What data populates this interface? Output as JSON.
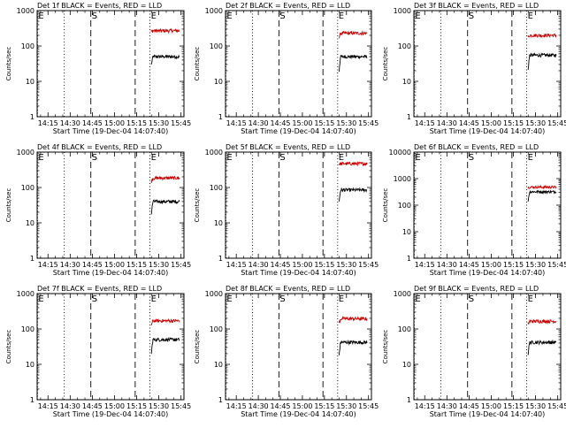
{
  "colors": {
    "background": "#ffffff",
    "axes": "#000000",
    "events": "#000000",
    "lld": "#cc0000"
  },
  "chart_data": [
    {
      "type": "line",
      "title": "Det 1f BLACK = Events, RED = LLD",
      "xlabel": "Start Time (19-Dec-04 14:07:40)",
      "ylabel": "Counts/sec",
      "yscale": "log",
      "ylim": [
        1,
        1000
      ],
      "yticks": [
        1,
        10,
        100,
        1000
      ],
      "ytick_labels": [
        "1",
        "10",
        "100",
        "1000"
      ],
      "xticks": [
        "14:15",
        "14:30",
        "14:45",
        "15:00",
        "15:15",
        "15:30",
        "15:45"
      ],
      "markers": [
        {
          "label": "E",
          "time": "14:07",
          "style": "dotted"
        },
        {
          "label": "",
          "time": "14:26",
          "style": "dotted"
        },
        {
          "label": "S",
          "time": "14:44",
          "style": "dashed"
        },
        {
          "label": "",
          "time": "15:14",
          "style": "dashed"
        },
        {
          "label": "E",
          "time": "15:24",
          "style": "dotted"
        }
      ],
      "series": [
        {
          "name": "Events",
          "color": "#000000",
          "t_start": "15:25",
          "t_end": "15:44",
          "level": 50,
          "start_level": 30
        },
        {
          "name": "LLD",
          "color": "#cc0000",
          "t_start": "15:25",
          "t_end": "15:44",
          "level": 270,
          "start_level": 255
        }
      ]
    },
    {
      "type": "line",
      "title": "Det 2f BLACK = Events, RED = LLD",
      "xlabel": "Start Time (19-Dec-04 14:07:40)",
      "ylabel": "Counts/sec",
      "yscale": "log",
      "ylim": [
        1,
        1000
      ],
      "yticks": [
        1,
        10,
        100,
        1000
      ],
      "ytick_labels": [
        "1",
        "10",
        "100",
        "1000"
      ],
      "xticks": [
        "14:15",
        "14:30",
        "14:45",
        "15:00",
        "15:15",
        "15:30",
        "15:45"
      ],
      "markers": [
        {
          "label": "E",
          "time": "14:07",
          "style": "dotted"
        },
        {
          "label": "",
          "time": "14:26",
          "style": "dotted"
        },
        {
          "label": "S",
          "time": "14:44",
          "style": "dashed"
        },
        {
          "label": "",
          "time": "15:14",
          "style": "dashed"
        },
        {
          "label": "E",
          "time": "15:24",
          "style": "dotted"
        }
      ],
      "series": [
        {
          "name": "Events",
          "color": "#000000",
          "t_start": "15:25",
          "t_end": "15:44",
          "level": 50,
          "start_level": 20
        },
        {
          "name": "LLD",
          "color": "#cc0000",
          "t_start": "15:25",
          "t_end": "15:44",
          "level": 230,
          "start_level": 170
        }
      ]
    },
    {
      "type": "line",
      "title": "Det 3f BLACK = Events, RED = LLD",
      "xlabel": "Start Time (19-Dec-04 14:07:40)",
      "ylabel": "Counts/sec",
      "yscale": "log",
      "ylim": [
        1,
        1000
      ],
      "yticks": [
        1,
        10,
        100,
        1000
      ],
      "ytick_labels": [
        "1",
        "10",
        "100",
        "1000"
      ],
      "xticks": [
        "14:15",
        "14:30",
        "14:45",
        "15:00",
        "15:15",
        "15:30",
        "15:45"
      ],
      "markers": [
        {
          "label": "E",
          "time": "14:07",
          "style": "dotted"
        },
        {
          "label": "",
          "time": "14:26",
          "style": "dotted"
        },
        {
          "label": "S",
          "time": "14:44",
          "style": "dashed"
        },
        {
          "label": "",
          "time": "15:14",
          "style": "dashed"
        },
        {
          "label": "E",
          "time": "15:24",
          "style": "dotted"
        }
      ],
      "series": [
        {
          "name": "Events",
          "color": "#000000",
          "t_start": "15:25",
          "t_end": "15:44",
          "level": 55,
          "start_level": 22
        },
        {
          "name": "LLD",
          "color": "#cc0000",
          "t_start": "15:25",
          "t_end": "15:44",
          "level": 200,
          "start_level": 180
        }
      ]
    },
    {
      "type": "line",
      "title": "Det 4f BLACK = Events, RED = LLD",
      "xlabel": "Start Time (19-Dec-04 14:07:40)",
      "ylabel": "Counts/sec",
      "yscale": "log",
      "ylim": [
        1,
        1000
      ],
      "yticks": [
        1,
        10,
        100,
        1000
      ],
      "ytick_labels": [
        "1",
        "10",
        "100",
        "1000"
      ],
      "xticks": [
        "14:15",
        "14:30",
        "14:45",
        "15:00",
        "15:15",
        "15:30",
        "15:45"
      ],
      "markers": [
        {
          "label": "E",
          "time": "14:07",
          "style": "dotted"
        },
        {
          "label": "",
          "time": "14:26",
          "style": "dotted"
        },
        {
          "label": "S",
          "time": "14:44",
          "style": "dashed"
        },
        {
          "label": "",
          "time": "15:14",
          "style": "dashed"
        },
        {
          "label": "E",
          "time": "15:24",
          "style": "dotted"
        }
      ],
      "series": [
        {
          "name": "Events",
          "color": "#000000",
          "t_start": "15:25",
          "t_end": "15:44",
          "level": 40,
          "start_level": 18
        },
        {
          "name": "LLD",
          "color": "#cc0000",
          "t_start": "15:25",
          "t_end": "15:44",
          "level": 185,
          "start_level": 150
        }
      ]
    },
    {
      "type": "line",
      "title": "Det 5f BLACK = Events, RED = LLD",
      "xlabel": "Start Time (19-Dec-04 14:07:40)",
      "ylabel": "Counts/sec",
      "yscale": "log",
      "ylim": [
        1,
        1000
      ],
      "yticks": [
        1,
        10,
        100,
        1000
      ],
      "ytick_labels": [
        "1",
        "10",
        "100",
        "1000"
      ],
      "xticks": [
        "14:15",
        "14:30",
        "14:45",
        "15:00",
        "15:15",
        "15:30",
        "15:45"
      ],
      "markers": [
        {
          "label": "E",
          "time": "14:07",
          "style": "dotted"
        },
        {
          "label": "",
          "time": "14:26",
          "style": "dotted"
        },
        {
          "label": "S",
          "time": "14:44",
          "style": "dashed"
        },
        {
          "label": "",
          "time": "15:14",
          "style": "dashed"
        },
        {
          "label": "E",
          "time": "15:24",
          "style": "dotted"
        }
      ],
      "series": [
        {
          "name": "Events",
          "color": "#000000",
          "t_start": "15:25",
          "t_end": "15:44",
          "level": 85,
          "start_level": 40
        },
        {
          "name": "LLD",
          "color": "#cc0000",
          "t_start": "15:25",
          "t_end": "15:44",
          "level": 470,
          "start_level": 470
        }
      ]
    },
    {
      "type": "line",
      "title": "Det 6f BLACK = Events, RED = LLD",
      "xlabel": "Start Time (19-Dec-04 14:07:40)",
      "ylabel": "Counts/sec",
      "yscale": "log",
      "ylim": [
        1,
        10000
      ],
      "yticks": [
        1,
        10,
        100,
        1000,
        10000
      ],
      "ytick_labels": [
        "1",
        "10",
        "100",
        "1000",
        "10000"
      ],
      "xticks": [
        "14:15",
        "14:30",
        "14:45",
        "15:00",
        "15:15",
        "15:30",
        "15:45"
      ],
      "markers": [
        {
          "label": "E",
          "time": "14:07",
          "style": "dotted"
        },
        {
          "label": "",
          "time": "14:26",
          "style": "dotted"
        },
        {
          "label": "S",
          "time": "14:44",
          "style": "dashed"
        },
        {
          "label": "",
          "time": "15:14",
          "style": "dashed"
        },
        {
          "label": "E",
          "time": "15:24",
          "style": "dotted"
        }
      ],
      "series": [
        {
          "name": "Events",
          "color": "#000000",
          "t_start": "15:25",
          "t_end": "15:44",
          "level": 320,
          "start_level": 150
        },
        {
          "name": "LLD",
          "color": "#cc0000",
          "t_start": "15:25",
          "t_end": "15:44",
          "level": 480,
          "start_level": 470
        }
      ]
    },
    {
      "type": "line",
      "title": "Det 7f BLACK = Events, RED = LLD",
      "xlabel": "Start Time (19-Dec-04 14:07:40)",
      "ylabel": "Counts/sec",
      "yscale": "log",
      "ylim": [
        1,
        1000
      ],
      "yticks": [
        1,
        10,
        100,
        1000
      ],
      "ytick_labels": [
        "1",
        "10",
        "100",
        "1000"
      ],
      "xticks": [
        "14:15",
        "14:30",
        "14:45",
        "15:00",
        "15:15",
        "15:30",
        "15:45"
      ],
      "markers": [
        {
          "label": "E",
          "time": "14:07",
          "style": "dotted"
        },
        {
          "label": "",
          "time": "14:26",
          "style": "dotted"
        },
        {
          "label": "S",
          "time": "14:44",
          "style": "dashed"
        },
        {
          "label": "",
          "time": "15:14",
          "style": "dashed"
        },
        {
          "label": "E",
          "time": "15:24",
          "style": "dotted"
        }
      ],
      "series": [
        {
          "name": "Events",
          "color": "#000000",
          "t_start": "15:25",
          "t_end": "15:44",
          "level": 50,
          "start_level": 20
        },
        {
          "name": "LLD",
          "color": "#cc0000",
          "t_start": "15:25",
          "t_end": "15:44",
          "level": 170,
          "start_level": 130
        }
      ]
    },
    {
      "type": "line",
      "title": "Det 8f BLACK = Events, RED = LLD",
      "xlabel": "Start Time (19-Dec-04 14:07:40)",
      "ylabel": "Counts/sec",
      "yscale": "log",
      "ylim": [
        1,
        1000
      ],
      "yticks": [
        1,
        10,
        100,
        1000
      ],
      "ytick_labels": [
        "1",
        "10",
        "100",
        "1000"
      ],
      "xticks": [
        "14:15",
        "14:30",
        "14:45",
        "15:00",
        "15:15",
        "15:30",
        "15:45"
      ],
      "markers": [
        {
          "label": "E",
          "time": "14:07",
          "style": "dotted"
        },
        {
          "label": "",
          "time": "14:26",
          "style": "dotted"
        },
        {
          "label": "S",
          "time": "14:44",
          "style": "dashed"
        },
        {
          "label": "",
          "time": "15:14",
          "style": "dashed"
        },
        {
          "label": "E",
          "time": "15:24",
          "style": "dotted"
        }
      ],
      "series": [
        {
          "name": "Events",
          "color": "#000000",
          "t_start": "15:25",
          "t_end": "15:44",
          "level": 42,
          "start_level": 18
        },
        {
          "name": "LLD",
          "color": "#cc0000",
          "t_start": "15:25",
          "t_end": "15:44",
          "level": 195,
          "start_level": 150
        }
      ]
    },
    {
      "type": "line",
      "title": "Det 9f BLACK = Events, RED = LLD",
      "xlabel": "Start Time (19-Dec-04 14:07:40)",
      "ylabel": "Counts/sec",
      "yscale": "log",
      "ylim": [
        1,
        1000
      ],
      "yticks": [
        1,
        10,
        100,
        1000
      ],
      "ytick_labels": [
        "1",
        "10",
        "100",
        "1000"
      ],
      "xticks": [
        "14:15",
        "14:30",
        "14:45",
        "15:00",
        "15:15",
        "15:30",
        "15:45"
      ],
      "markers": [
        {
          "label": "E",
          "time": "14:07",
          "style": "dotted"
        },
        {
          "label": "",
          "time": "14:26",
          "style": "dotted"
        },
        {
          "label": "S",
          "time": "14:44",
          "style": "dashed"
        },
        {
          "label": "",
          "time": "15:14",
          "style": "dashed"
        },
        {
          "label": "E",
          "time": "15:24",
          "style": "dotted"
        }
      ],
      "series": [
        {
          "name": "Events",
          "color": "#000000",
          "t_start": "15:25",
          "t_end": "15:44",
          "level": 42,
          "start_level": 20
        },
        {
          "name": "LLD",
          "color": "#cc0000",
          "t_start": "15:25",
          "t_end": "15:44",
          "level": 165,
          "start_level": 140
        }
      ]
    }
  ]
}
